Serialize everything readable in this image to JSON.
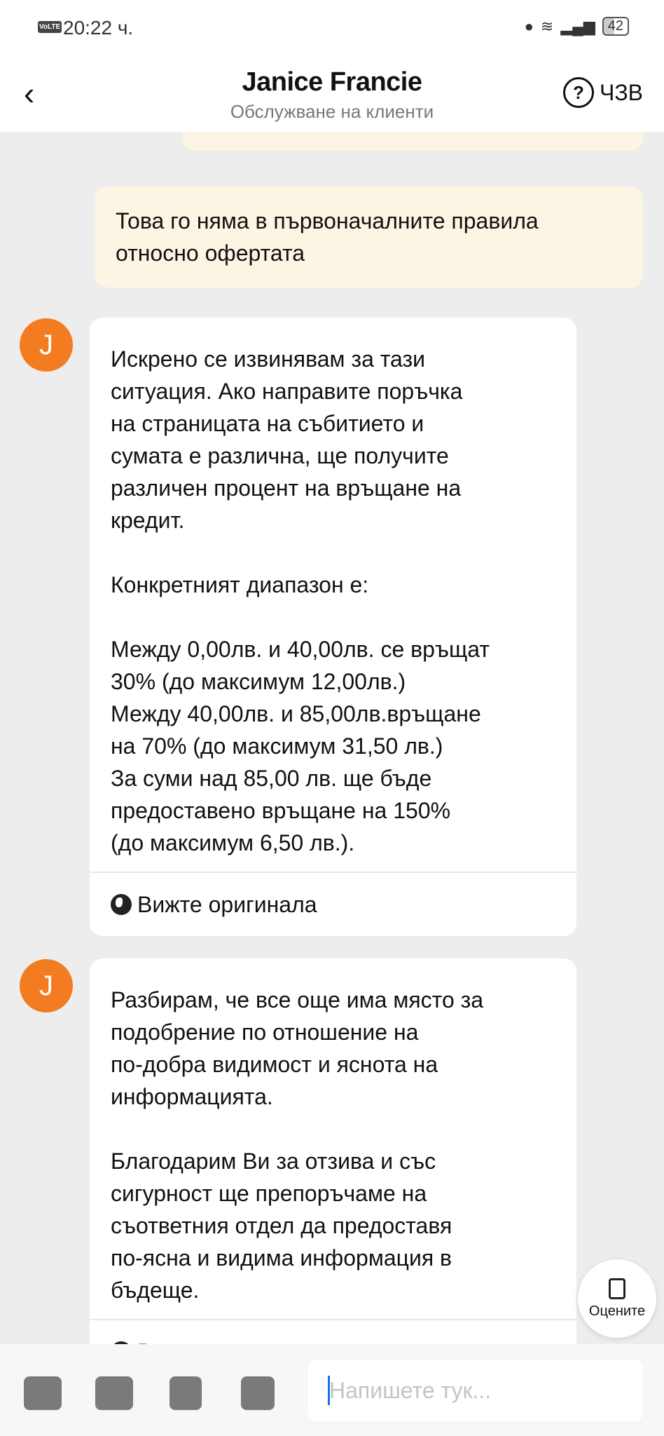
{
  "status_bar": {
    "volte": "VoLTE",
    "time": "20:22 ч.",
    "nfc": "N",
    "battery": "42"
  },
  "header": {
    "back": "‹",
    "title": "Janice Francie",
    "subtitle": "Обслужване на клиенти",
    "faq_label": "ЧЗВ",
    "faq_icon": "?"
  },
  "messages": [
    {
      "from": "user",
      "lines": [
        "Това го няма в първоначалните правила",
        "относно офертата"
      ]
    },
    {
      "from": "agent",
      "avatar": "J",
      "lines": [
        "Искрено се извинявам за тази",
        "ситуация. Ако направите поръчка",
        "на страницата на събитието и",
        "сумата е различна, ще получите",
        "различен процент на връщане на",
        "кредит.",
        "",
        "Конкретният диапазон е:",
        "",
        "Между 0,00лв. и 40,00лв. се връщат",
        "30% (до максимум 12,00лв.)",
        "Между 40,00лв. и 85,00лв.връщане",
        "на 70% (до максимум 31,50 лв.)",
        "За суми над 85,00 лв. ще бъде",
        "предоставено връщане на 150%",
        "(до максимум 6,50 лв.)."
      ],
      "see_original": "Вижте оригинала"
    },
    {
      "from": "agent",
      "avatar": "J",
      "lines": [
        "Разбирам, че все още има място за",
        "подобрение по отношение на",
        "по-добра видимост и яснота на",
        "информацията.",
        "",
        "Благодарим Ви за отзива и със",
        "сигурност ще препоръчаме на",
        "съответния отдел да предоставя",
        "по-ясна и видима информация в",
        "бъдеще."
      ],
      "see_original": "Вижте оригинала"
    }
  ],
  "rate_button": {
    "label": "Оцените"
  },
  "composer": {
    "placeholder": "Напишете тук..."
  },
  "colors": {
    "avatar": "#f47c20",
    "user_bubble": "#fdf5e4",
    "background": "#ededed"
  }
}
